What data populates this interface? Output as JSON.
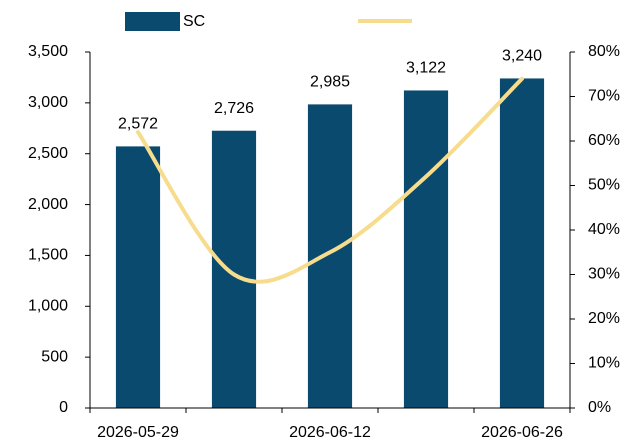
{
  "chart_data": {
    "type": "bar_line",
    "categories": [
      "2026-05-29",
      null,
      "2026-06-12",
      null,
      "2026-06-26"
    ],
    "series": [
      {
        "name": "SC",
        "type": "bar",
        "color": "#0b4a6f",
        "values": [
          2572,
          2726,
          2985,
          3122,
          3240
        ],
        "value_labels": [
          "2,572",
          "2,726",
          "2,985",
          "3,122",
          "3,240"
        ]
      },
      {
        "type": "line",
        "axis": "y2",
        "color": "#f6dc8c",
        "values": [
          62,
          30,
          35,
          52,
          74
        ]
      }
    ],
    "ylim": [
      0,
      3500
    ],
    "yticks": [
      0,
      500,
      {
        "value": 1000,
        "label": "1,000"
      },
      {
        "value": 1500,
        "label": "1,500"
      },
      {
        "value": 2000,
        "label": "2,000"
      },
      {
        "value": 2500,
        "label": "2,500"
      },
      {
        "value": 3000,
        "label": "3,000"
      },
      {
        "value": 3500,
        "label": "3,500"
      }
    ],
    "y2lim": [
      0,
      80
    ],
    "y2ticks": [
      {
        "value": 0,
        "label": "0%"
      },
      {
        "value": 10,
        "label": "10%"
      },
      {
        "value": 20,
        "label": "20%"
      },
      {
        "value": 30,
        "label": "30%"
      },
      {
        "value": 40,
        "label": "40%"
      },
      {
        "value": 50,
        "label": "50%"
      },
      {
        "value": 60,
        "label": "60%"
      },
      {
        "value": 70,
        "label": "70%"
      },
      {
        "value": 80,
        "label": "80%"
      }
    ],
    "grid": false,
    "legend": "top"
  }
}
